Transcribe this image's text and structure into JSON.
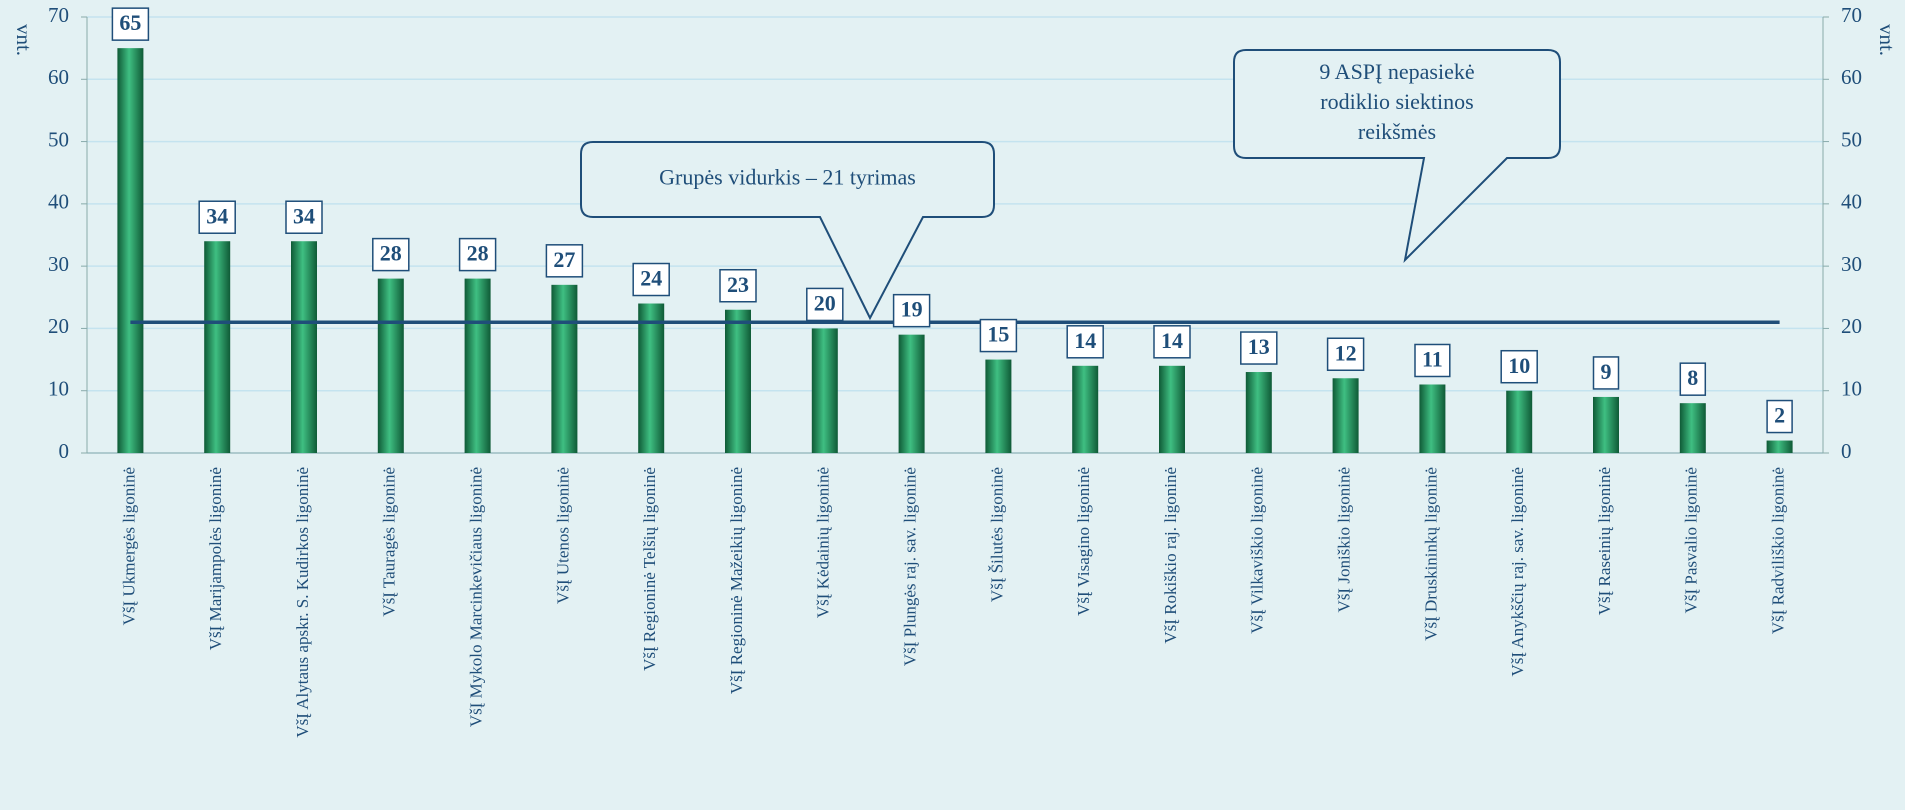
{
  "chart_data": {
    "type": "bar",
    "categories": [
      "VšĮ Ukmergės ligoninė",
      "VšĮ Marijampolės ligoninė",
      "VšĮ Alytaus apskr. S. Kudirkos ligoninė",
      "VšĮ Tauragės ligoninė",
      "VšĮ Mykolo Marcinkevičiaus ligoninė",
      "VšĮ Utenos ligoninė",
      "VšĮ Regioninė Telšių ligoninė",
      "VšĮ Regioninė Mažeikių ligoninė",
      "VšĮ Kėdainių ligoninė",
      "VšĮ Plungės raj. sav. ligoninė",
      "VšĮ Šilutės ligoninė",
      "VšĮ Visagino ligoninė",
      "VšĮ Rokiškio raj. ligoninė",
      "VšĮ Vilkaviškio ligoninė",
      "VšĮ Joniškio ligoninė",
      "VšĮ Druskininkų ligoninė",
      "VšĮ Anykščių raj. sav. ligoninė",
      "VšĮ Raseinių ligoninė",
      "VšĮ Pasvalio ligoninė",
      "VšĮ Radviliškio ligoninė"
    ],
    "values": [
      65,
      34,
      34,
      28,
      28,
      27,
      24,
      23,
      20,
      19,
      15,
      14,
      14,
      13,
      12,
      11,
      10,
      9,
      8,
      2
    ],
    "color": "#1e8a5a",
    "label_colors": [
      "#1f4e79",
      "#1f4e79",
      "#1f4e79",
      "#1f4e79",
      "#1f4e79",
      "#1f4e79",
      "#1f4e79",
      "#1f4e79",
      "#1f4e79",
      "#1f4e79",
      "#1f4e79",
      "#e00000",
      "#e00000",
      "#e00000",
      "#e00000",
      "#e00000",
      "#e00000",
      "#e00000",
      "#e00000",
      "#e00000"
    ],
    "average": 21,
    "average_color": "#1f4e79",
    "y_label": "vnt.",
    "y2_label": "vnt.",
    "ylim": [
      0,
      70
    ],
    "yticks": [
      0,
      10,
      20,
      30,
      40,
      50,
      60,
      70
    ],
    "y2lim": [
      0,
      70
    ],
    "y2ticks": [
      0,
      10,
      20,
      30,
      40,
      50,
      60,
      70
    ],
    "grid": true,
    "annotations": [
      {
        "lines": [
          "Grupės vidurkis – 21 tyrimas"
        ]
      },
      {
        "lines": [
          "9 ASPĮ nepasiekė",
          "rodiklio siektinos",
          "reikšmės"
        ]
      }
    ]
  }
}
